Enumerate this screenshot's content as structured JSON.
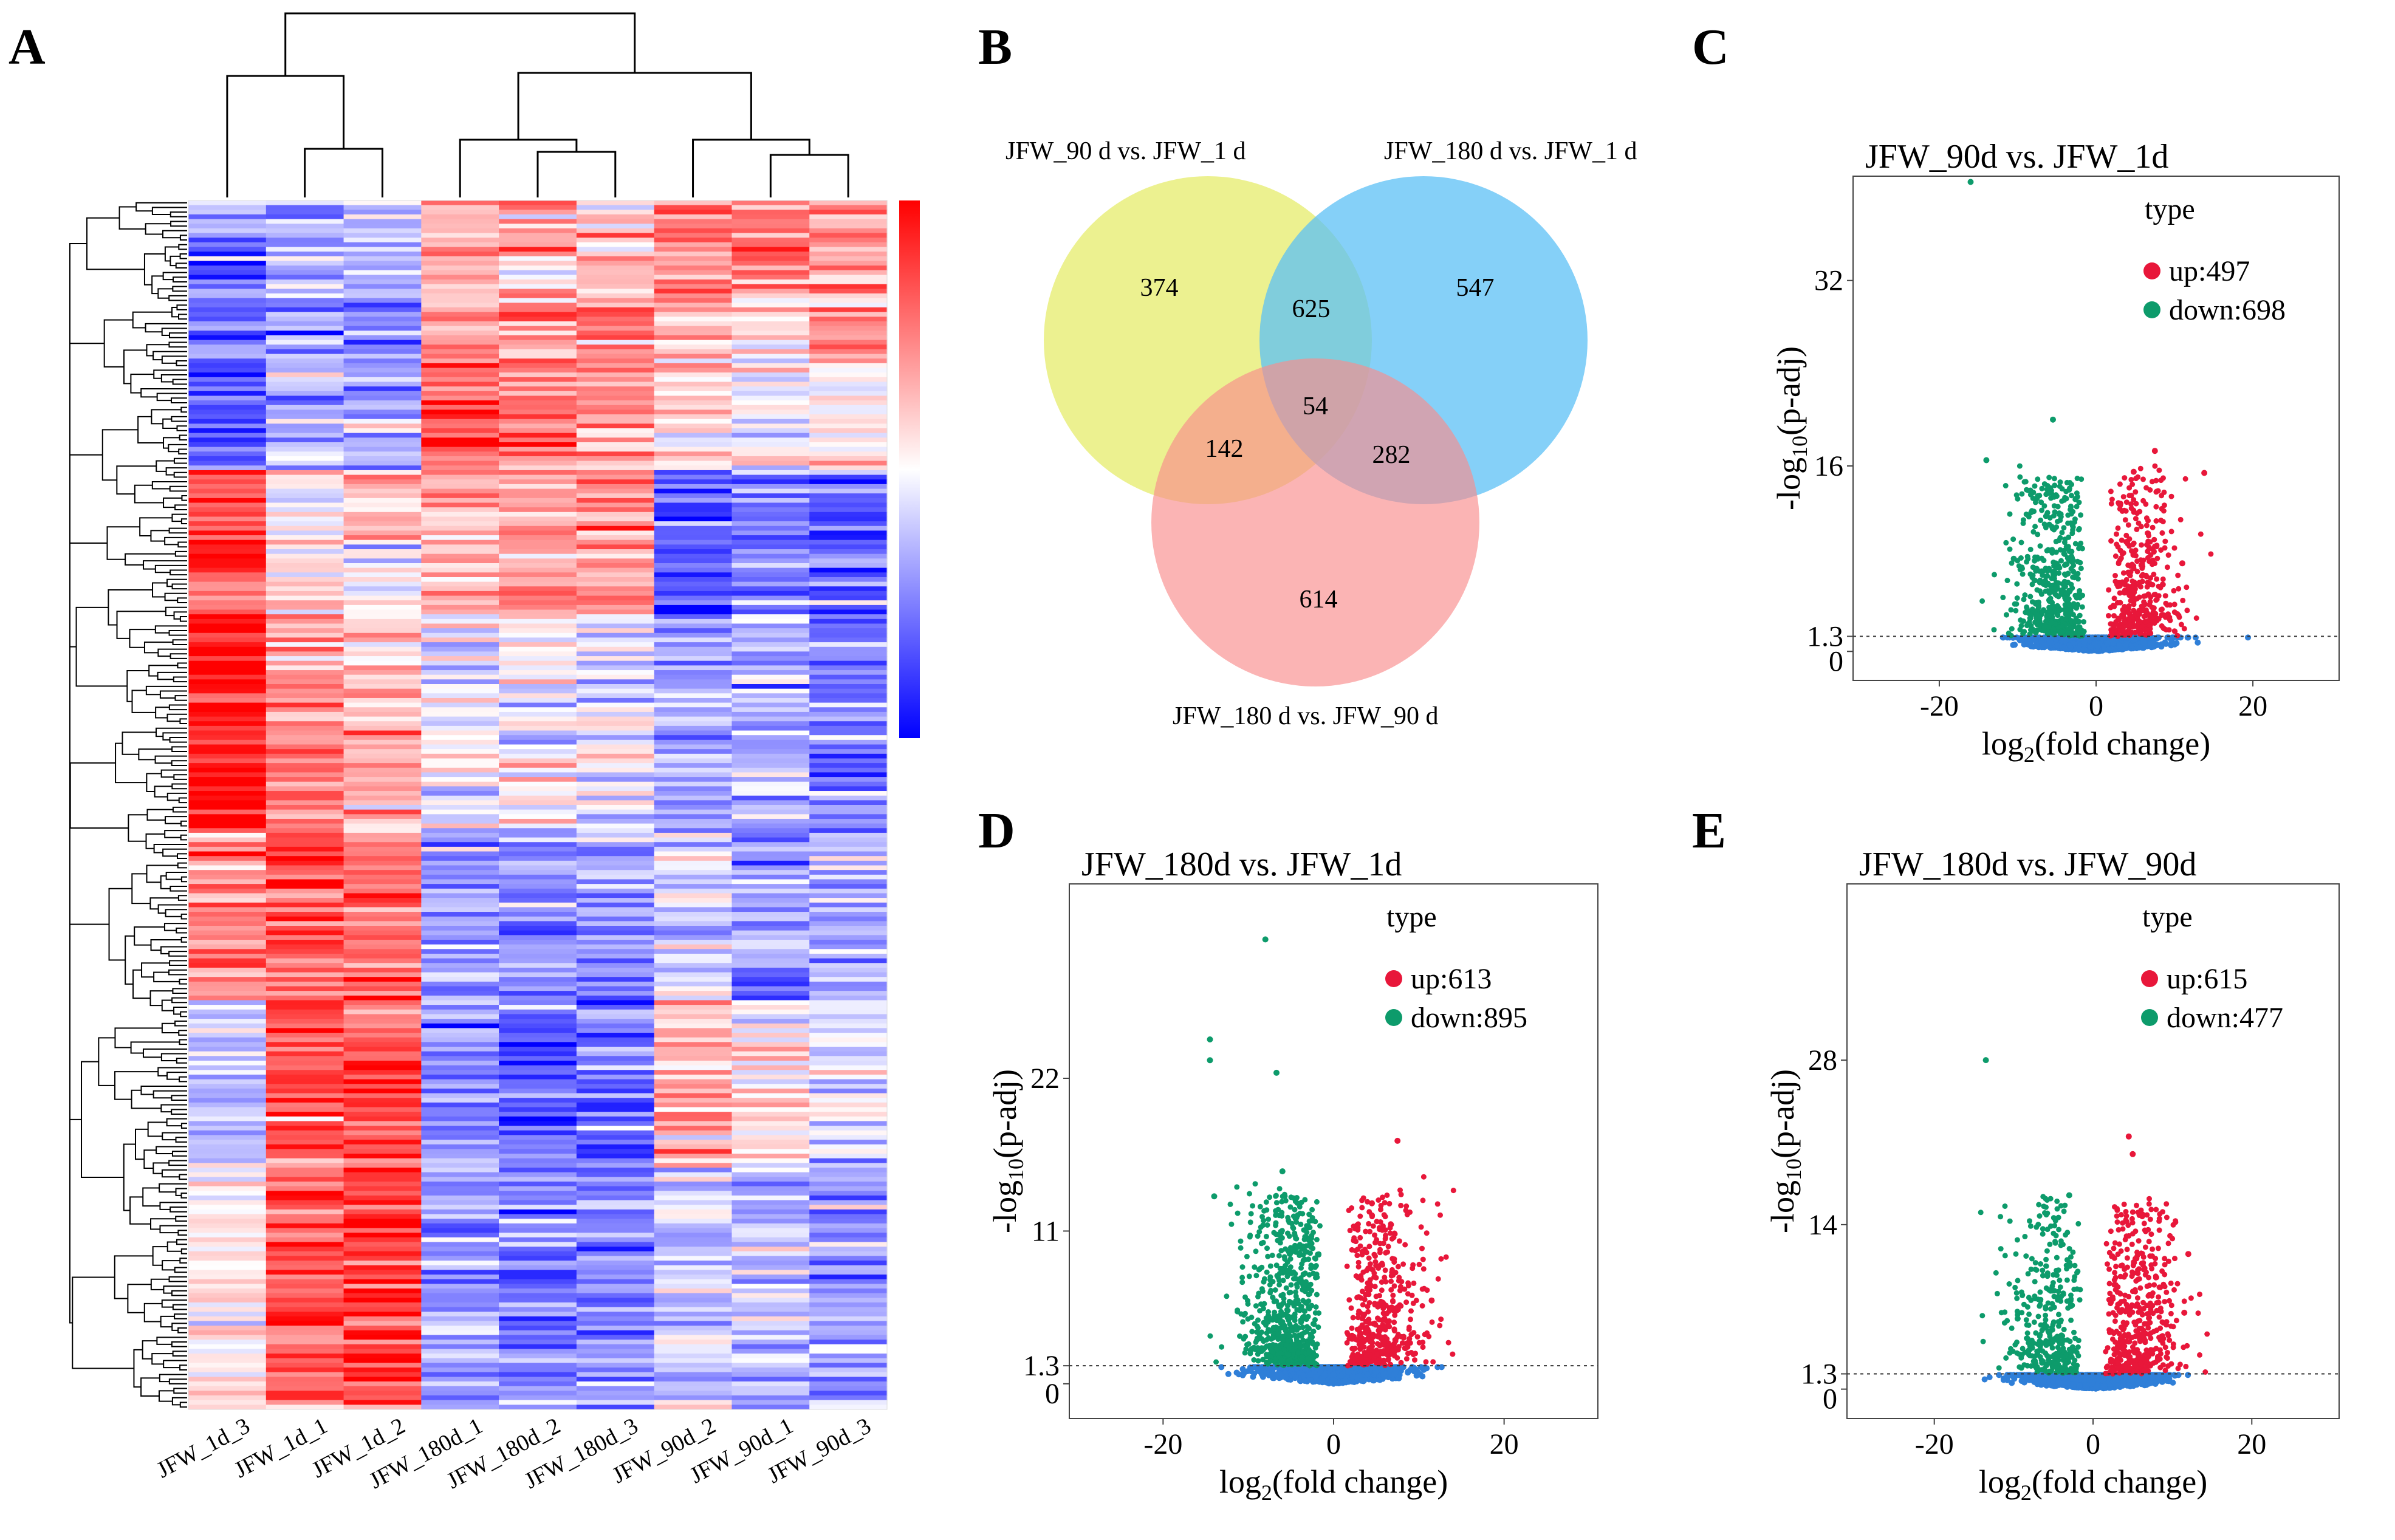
{
  "panels": {
    "a": "A",
    "b": "B",
    "c": "C",
    "d": "D",
    "e": "E"
  },
  "heatmap": {
    "samples": [
      "JFW_1d_3",
      "JFW_1d_1",
      "JFW_1d_2",
      "JFW_180d_1",
      "JFW_180d_2",
      "JFW_180d_3",
      "JFW_90d_2",
      "JFW_90d_1",
      "JFW_90d_3"
    ],
    "colors": {
      "high": "#ff0000",
      "mid": "#ffffff",
      "low": "#0000ff"
    }
  },
  "venn": {
    "sets": [
      {
        "label": "JFW_90 d vs. JFW_1 d",
        "color": "#e9ee7c"
      },
      {
        "label": "JFW_180 d vs. JFW_1 d",
        "color": "#5cc0f5"
      },
      {
        "label": "JFW_180 d vs. JFW_90 d",
        "color": "#f98c8c"
      }
    ],
    "counts": {
      "a_only": "374",
      "b_only": "547",
      "c_only": "614",
      "ab": "625",
      "ac": "142",
      "bc": "282",
      "abc": "54"
    }
  },
  "chart_data": [
    {
      "type": "scatter",
      "panel": "C",
      "title": "JFW_90d vs. JFW_1d",
      "xlabel": "log2(fold change)",
      "ylabel": "-log10(p-adj)",
      "xlim": [
        -31,
        31
      ],
      "ylim": [
        -2.5,
        41
      ],
      "xticks": [
        -20,
        0,
        20
      ],
      "yticks": [
        0,
        1.3,
        16,
        32
      ],
      "threshold": 1.3,
      "legend": {
        "title": "type",
        "up": "up:497",
        "down": "down:698"
      },
      "series": [
        {
          "name": "up",
          "count": 497,
          "color": "#e8173a"
        },
        {
          "name": "down",
          "count": 698,
          "color": "#0d9b6b"
        },
        {
          "name": "ns",
          "color": "#2f7fd8"
        }
      ],
      "outliers": [
        [
          -16,
          40.5
        ],
        [
          -5.5,
          20
        ],
        [
          -14,
          16.5
        ],
        [
          7.5,
          17.3
        ],
        [
          13.8,
          15.4
        ],
        [
          4.8,
          15.5
        ],
        [
          11,
          7.6
        ],
        [
          -10.5,
          8
        ]
      ]
    },
    {
      "type": "scatter",
      "panel": "D",
      "title": "JFW_180d vs. JFW_1d",
      "xlabel": "log2(fold change)",
      "ylabel": "-log10(p-adj)",
      "xlim": [
        -31,
        31
      ],
      "ylim": [
        -2.5,
        36
      ],
      "xticks": [
        -20,
        0,
        20
      ],
      "yticks": [
        0,
        1.3,
        11,
        22
      ],
      "threshold": 1.3,
      "legend": {
        "title": "type",
        "up": "up:613",
        "down": "down:895"
      },
      "series": [
        {
          "name": "up",
          "count": 613,
          "color": "#e8173a"
        },
        {
          "name": "down",
          "count": 895,
          "color": "#0d9b6b"
        },
        {
          "name": "ns",
          "color": "#2f7fd8"
        }
      ],
      "outliers": [
        [
          -8,
          32
        ],
        [
          -14.5,
          24.8
        ],
        [
          -14.5,
          23.3
        ],
        [
          -6.7,
          22.4
        ],
        [
          7.5,
          17.5
        ],
        [
          -14,
          13.5
        ],
        [
          -6,
          15.3
        ],
        [
          11.5,
          6
        ],
        [
          4.5,
          13
        ]
      ]
    },
    {
      "type": "scatter",
      "panel": "E",
      "title": "JFW_180d vs. JFW_90d",
      "xlabel": "log2(fold change)",
      "ylabel": "-log10(p-adj)",
      "xlim": [
        -31,
        31
      ],
      "ylim": [
        -2.5,
        43
      ],
      "xticks": [
        -20,
        0,
        20
      ],
      "yticks": [
        0,
        1.3,
        14,
        28
      ],
      "threshold": 1.3,
      "legend": {
        "title": "type",
        "up": "up:615",
        "down": "down:477"
      },
      "series": [
        {
          "name": "up",
          "count": 615,
          "color": "#e8173a"
        },
        {
          "name": "down",
          "count": 477,
          "color": "#0d9b6b"
        },
        {
          "name": "ns",
          "color": "#2f7fd8"
        }
      ],
      "outliers": [
        [
          -13.5,
          28
        ],
        [
          4.5,
          21.5
        ],
        [
          5,
          20
        ],
        [
          -3,
          16.5
        ],
        [
          12,
          11.5
        ],
        [
          11.5,
          6.5
        ],
        [
          -9.5,
          6
        ]
      ]
    }
  ]
}
